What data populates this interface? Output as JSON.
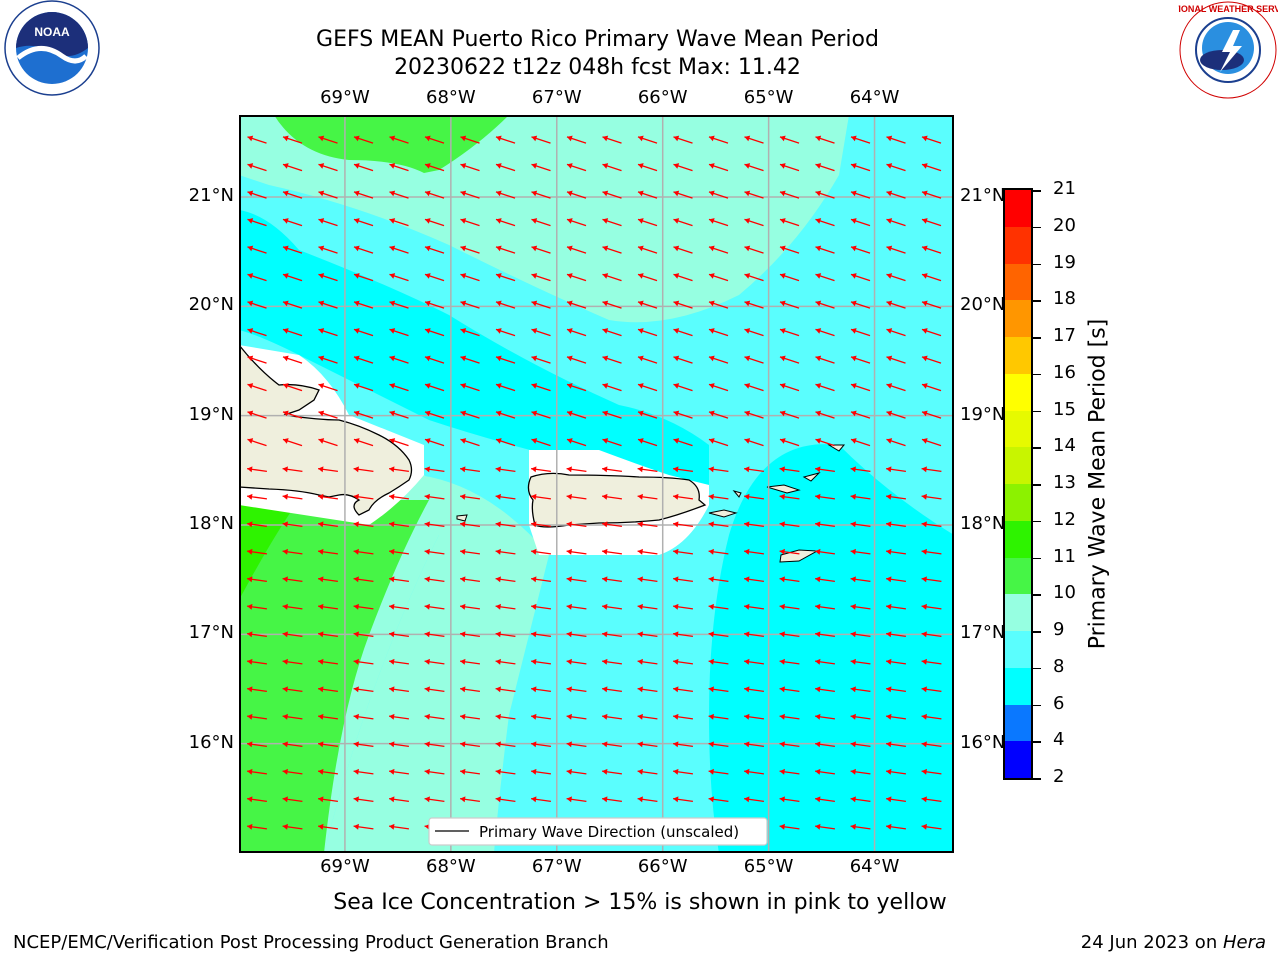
{
  "header": {
    "title_line1": "GEFS MEAN Puerto Rico Primary Wave Mean Period",
    "title_line2": "20230622 t12z 048h fcst   Max: 11.42"
  },
  "logos": {
    "noaa": {
      "text": "NOAA",
      "ring_text": "NATIONAL OCEANIC AND ATMOSPHERIC ADMINISTRATION · U.S. DEPARTMENT OF COMMERCE"
    },
    "nws": {
      "ring_text": "NATIONAL WEATHER SERVICE"
    }
  },
  "map": {
    "lon_labels": [
      "69°W",
      "68°W",
      "67°W",
      "66°W",
      "65°W",
      "64°W"
    ],
    "lat_labels": [
      "21°N",
      "20°N",
      "19°N",
      "18°N",
      "17°N",
      "16°N"
    ],
    "lon_range": [
      -70.0,
      -63.25
    ],
    "lat_range": [
      15.0,
      21.75
    ],
    "wave_direction_deg_toward": "WNW",
    "legend_label": "Primary Wave Direction (unscaled)",
    "land_color": "#efefdd",
    "arrow_color": "#ff0000"
  },
  "colorbar": {
    "label": "Primary Wave Mean Period [s]",
    "ticks": [
      "2",
      "4",
      "6",
      "8",
      "9",
      "10",
      "11",
      "12",
      "13",
      "14",
      "15",
      "16",
      "17",
      "18",
      "19",
      "20",
      "21"
    ],
    "colors": [
      "#0000ff",
      "#0a78ff",
      "#00ffff",
      "#5afefe",
      "#96ffe1",
      "#46f546",
      "#2ef300",
      "#8cf200",
      "#c8f500",
      "#e6fa00",
      "#ffff00",
      "#ffc800",
      "#ff9600",
      "#ff6400",
      "#ff3200",
      "#ff0000"
    ]
  },
  "subtitle": "Sea Ice Concentration > 15% is shown in pink to yellow",
  "footer": {
    "left": "NCEP/EMC/Verification Post Processing Product Generation Branch",
    "right_date": "24 Jun 2023 on ",
    "right_host": "Hera"
  }
}
